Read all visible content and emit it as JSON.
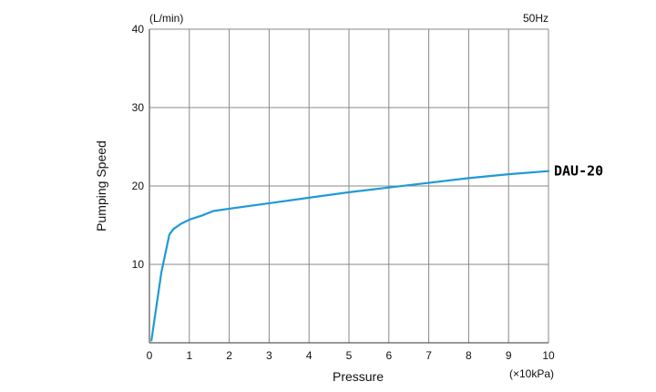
{
  "chart_data": {
    "type": "line",
    "title": "",
    "xlabel": "Pressure",
    "ylabel": "Pumping Speed",
    "x_unit": "(×10kPa)",
    "y_unit": "(L/min)",
    "frequency_label": "50Hz",
    "xlim": [
      0,
      10
    ],
    "ylim": [
      0,
      40
    ],
    "x_ticks": [
      0,
      1,
      2,
      3,
      4,
      5,
      6,
      7,
      8,
      9,
      10
    ],
    "y_ticks": [
      10,
      20,
      30,
      40
    ],
    "grid": "vertical lines at each x tick; horizontal lines at each y tick",
    "line_color": "#1e9ad6",
    "series": [
      {
        "name": "DAU-20",
        "x": [
          0.05,
          0.3,
          0.5,
          0.6,
          0.8,
          1.0,
          1.3,
          1.6,
          2.0,
          3.0,
          4.0,
          5.0,
          6.0,
          7.0,
          8.0,
          9.0,
          10.0
        ],
        "y": [
          0.3,
          9.0,
          13.8,
          14.5,
          15.2,
          15.7,
          16.2,
          16.8,
          17.1,
          17.8,
          18.5,
          19.2,
          19.8,
          20.4,
          21.0,
          21.5,
          21.9
        ]
      }
    ]
  }
}
